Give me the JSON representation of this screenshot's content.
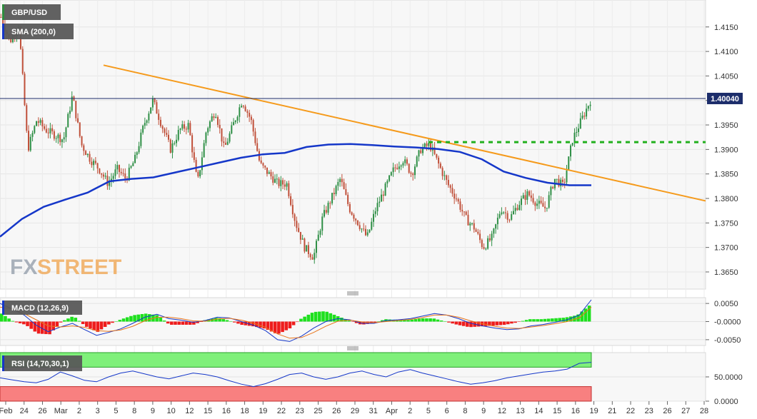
{
  "chart_data": [
    {
      "type": "candlestick",
      "title": "GBP/USD",
      "indicator_label": "SMA (200,0)",
      "watermark": {
        "fx": "FX",
        "street": "STREET"
      },
      "price_axis": {
        "ylim": [
          1.3615,
          1.4205
        ],
        "ticks": [
          "1.4150",
          "1.4100",
          "1.4050",
          "1.4000",
          "1.3950",
          "1.3900",
          "1.3850",
          "1.3800",
          "1.3750",
          "1.3700",
          "1.3650"
        ]
      },
      "last_price": {
        "label": "1.40040",
        "value": 1.4004
      },
      "x_ticks": [
        "Feb",
        "24",
        "26",
        "Mar",
        "2",
        "3",
        "5",
        "8",
        "9",
        "10",
        "12",
        "15",
        "16",
        "18",
        "19",
        "22",
        "23",
        "25",
        "26",
        "29",
        "31",
        "Apr",
        "2",
        "5",
        "6",
        "8",
        "9",
        "12",
        "13",
        "14",
        "15",
        "16",
        "19",
        "21",
        "22",
        "23",
        "26",
        "27",
        "28"
      ],
      "trendline": {
        "from": 1.4072,
        "to": 1.3795
      },
      "resistance_level": 1.3915,
      "sma_200": [
        1.3722,
        1.3758,
        1.3783,
        1.3798,
        1.3812,
        1.3835,
        1.384,
        1.3843,
        1.3853,
        1.3863,
        1.3873,
        1.3883,
        1.389,
        1.3893,
        1.3905,
        1.391,
        1.3911,
        1.3909,
        1.3906,
        1.3904,
        1.3901,
        1.3895,
        1.388,
        1.3855,
        1.3842,
        1.3832,
        1.3827,
        1.3827
      ],
      "price_path": [
        1.417,
        1.412,
        1.4155,
        1.39,
        1.396,
        1.394,
        1.393,
        1.392,
        1.401,
        1.391,
        1.388,
        1.386,
        1.383,
        1.386,
        1.384,
        1.388,
        1.395,
        1.4,
        1.395,
        1.39,
        1.394,
        1.395,
        1.383,
        1.394,
        1.398,
        1.39,
        1.395,
        1.4,
        1.396,
        1.387,
        1.385,
        1.383,
        1.383,
        1.375,
        1.37,
        1.368,
        1.376,
        1.38,
        1.384,
        1.378,
        1.375,
        1.372,
        1.378,
        1.382,
        1.386,
        1.388,
        1.385,
        1.39,
        1.391,
        1.387,
        1.383,
        1.38,
        1.376,
        1.374,
        1.37,
        1.372,
        1.378,
        1.376,
        1.379,
        1.381,
        1.379,
        1.378,
        1.384,
        1.3825,
        1.392,
        1.396,
        1.4
      ]
    },
    {
      "type": "line",
      "title": "MACD (12,26,9)",
      "ylim": [
        -0.0066,
        0.0066
      ],
      "ticks": [
        "0.0050",
        "-0.0000",
        "-0.0050"
      ],
      "macd": [
        0.005,
        0.0035,
        0.0018,
        -0.001,
        -0.0028,
        -0.0015,
        -0.0005,
        -0.0022,
        -0.0038,
        -0.003,
        -0.002,
        -0.0005,
        0.0012,
        0.002,
        0.0008,
        0.0004,
        -0.0002,
        0.0003,
        0.0012,
        0.001,
        0.0,
        -0.001,
        -0.0025,
        -0.005,
        -0.0055,
        -0.004,
        -0.0018,
        0.0,
        0.0008,
        0.0005,
        -0.0005,
        -0.0005,
        0.0003,
        0.0005,
        0.0008,
        0.0015,
        0.0022,
        0.0018,
        0.0008,
        -0.0005,
        -0.0012,
        -0.0018,
        -0.0022,
        -0.002,
        -0.0012,
        -0.0008,
        -0.0002,
        0.0005,
        0.0018,
        0.006
      ],
      "signal": [
        0.004,
        0.0035,
        0.0022,
        0.0005,
        -0.0012,
        -0.0015,
        -0.0012,
        -0.0016,
        -0.0025,
        -0.0027,
        -0.0023,
        -0.0013,
        0.0002,
        0.0012,
        0.0012,
        0.0008,
        0.0002,
        0.0001,
        0.0007,
        0.0009,
        0.0004,
        -0.0004,
        -0.0016,
        -0.0034,
        -0.0046,
        -0.0044,
        -0.003,
        -0.0013,
        0.0001,
        0.0004,
        -0.0001,
        -0.0003,
        0.0,
        0.0003,
        0.0006,
        0.0011,
        0.0018,
        0.0018,
        0.0012,
        0.0002,
        -0.0006,
        -0.0013,
        -0.0018,
        -0.0019,
        -0.0015,
        -0.0011,
        -0.0006,
        0.0,
        0.001,
        0.004
      ]
    },
    {
      "type": "line",
      "title": "RSI (14,70,30,1)",
      "ylim": [
        0,
        100
      ],
      "ticks": [
        "50.0000",
        "0.0000"
      ],
      "overbought": 70,
      "oversold": 30,
      "values": [
        48,
        44,
        40,
        38,
        45,
        60,
        52,
        43,
        40,
        50,
        58,
        62,
        56,
        50,
        46,
        52,
        58,
        55,
        50,
        42,
        35,
        30,
        36,
        45,
        55,
        58,
        50,
        45,
        50,
        58,
        62,
        55,
        50,
        60,
        65,
        58,
        52,
        46,
        40,
        35,
        38,
        42,
        48,
        52,
        56,
        60,
        62,
        66,
        78,
        80
      ]
    }
  ]
}
